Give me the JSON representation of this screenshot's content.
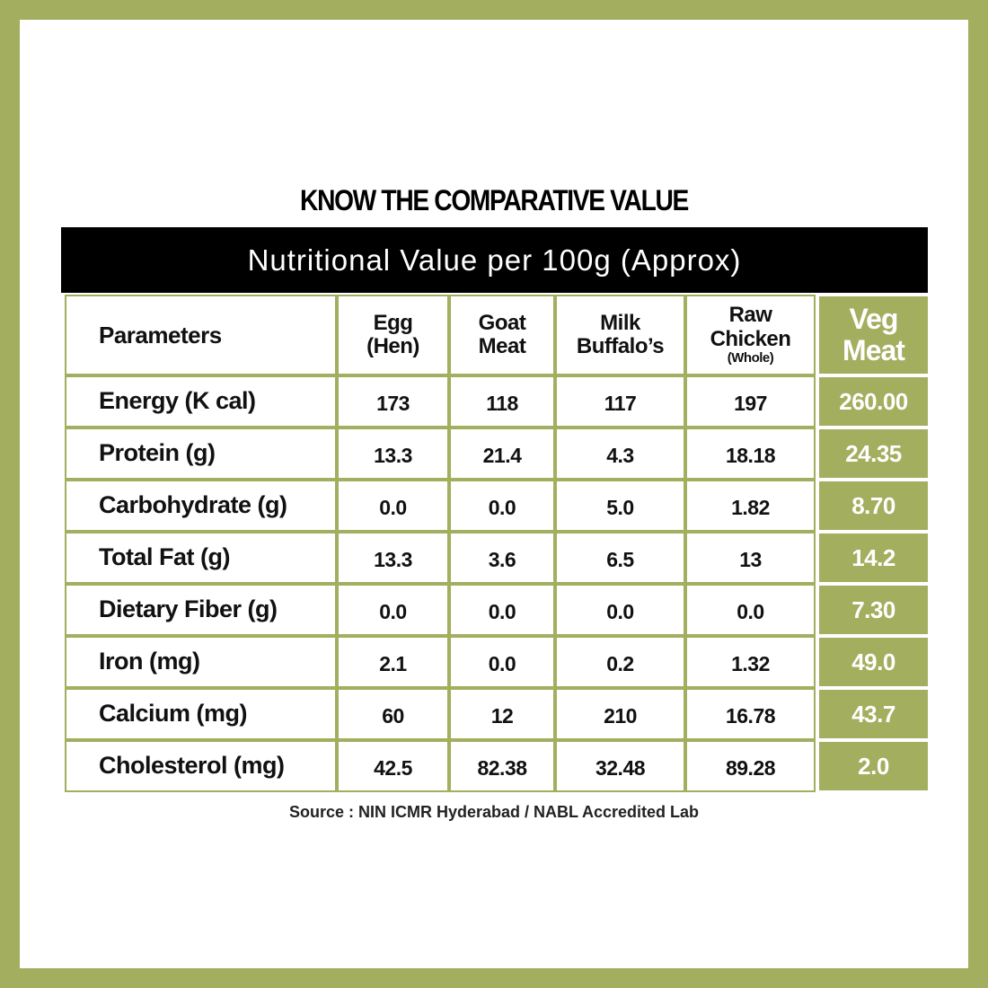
{
  "title": "KNOW THE COMPARATIVE VALUE",
  "subtitle": "Nutritional Value per 100g (Approx)",
  "table": {
    "headers": [
      [
        "Parameters"
      ],
      [
        "Egg",
        "(Hen)"
      ],
      [
        "Goat",
        "Meat"
      ],
      [
        "Milk",
        "Buffalo’s"
      ],
      [
        "Raw",
        "Chicken",
        "(Whole)"
      ],
      [
        "Veg",
        "Meat"
      ]
    ],
    "rows": [
      [
        "Energy (K cal)",
        "173",
        "118",
        "117",
        "197",
        "260.00"
      ],
      [
        "Protein (g)",
        "13.3",
        "21.4",
        "4.3",
        "18.18",
        "24.35"
      ],
      [
        "Carbohydrate (g)",
        "0.0",
        "0.0",
        "5.0",
        "1.82",
        "8.70"
      ],
      [
        "Total Fat (g)",
        "13.3",
        "3.6",
        "6.5",
        "13",
        "14.2"
      ],
      [
        "Dietary Fiber (g)",
        "0.0",
        "0.0",
        "0.0",
        "0.0",
        "7.30"
      ],
      [
        "Iron (mg)",
        "2.1",
        "0.0",
        "0.2",
        "1.32",
        "49.0"
      ],
      [
        "Calcium (mg)",
        "60",
        "12",
        "210",
        "16.78",
        "43.7"
      ],
      [
        "Cholesterol (mg)",
        "42.5",
        "82.38",
        "32.48",
        "89.28",
        "2.0"
      ]
    ]
  },
  "source": "Source : NIN ICMR Hyderabad / NABL Accredited Lab"
}
